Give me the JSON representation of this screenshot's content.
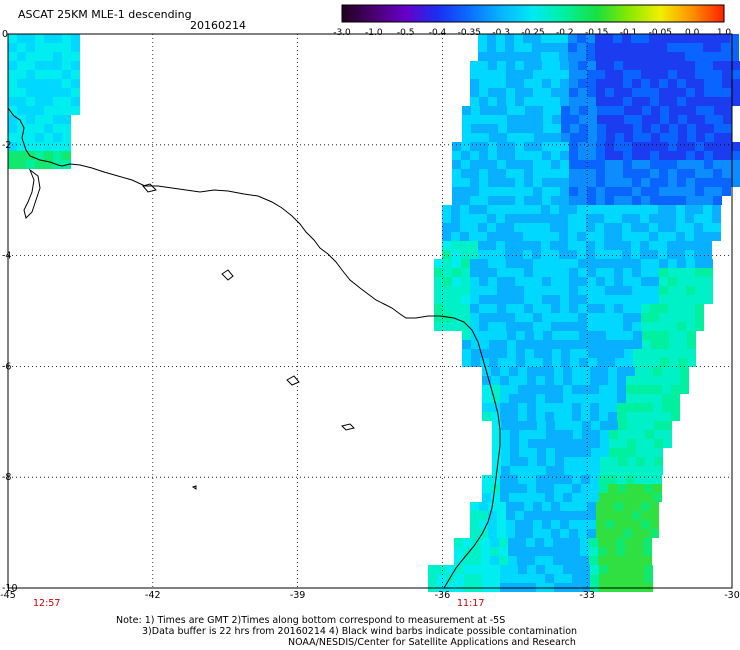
{
  "header": {
    "title": "ASCAT 25KM MLE-1 descending",
    "date": "20160214"
  },
  "colorbar": {
    "ticks": [
      "-3.0",
      "-1.0",
      "-0.5",
      "-0.4",
      "-0.35",
      "-0.3",
      "-0.25",
      "-0.2",
      "-0.15",
      "-0.1",
      "-0.05",
      "0.0",
      "1.0"
    ],
    "colors": [
      "#20001c",
      "#4a0070",
      "#6600c8",
      "#1c2ef0",
      "#0a6eff",
      "#08b4ff",
      "#00eaf0",
      "#00f0a0",
      "#18e040",
      "#88e800",
      "#f0f000",
      "#ff9000",
      "#ff2000"
    ]
  },
  "axes": {
    "x_ticks": [
      "-45",
      "-42",
      "-39",
      "-36",
      "-33",
      "-30"
    ],
    "y_ticks": [
      "0",
      "-2",
      "-4",
      "-6",
      "-8",
      "-10"
    ],
    "lon_range": [
      -45,
      -30
    ],
    "lat_range": [
      -10,
      0
    ]
  },
  "times": {
    "left": {
      "label": "12:57",
      "color": "#cc0000"
    },
    "right": {
      "label": "11:17",
      "color": "#cc0000"
    }
  },
  "notes": {
    "line1": "Note: 1) Times are GMT 2)Times along bottom correspond to measurement at -5S",
    "line2": "3)Data buffer is 22 hrs from 20160214 4) Black wind barbs indicate possible contamination",
    "line3": "NOAA/NESDIS/Center for Satellite Applications and Research"
  }
}
